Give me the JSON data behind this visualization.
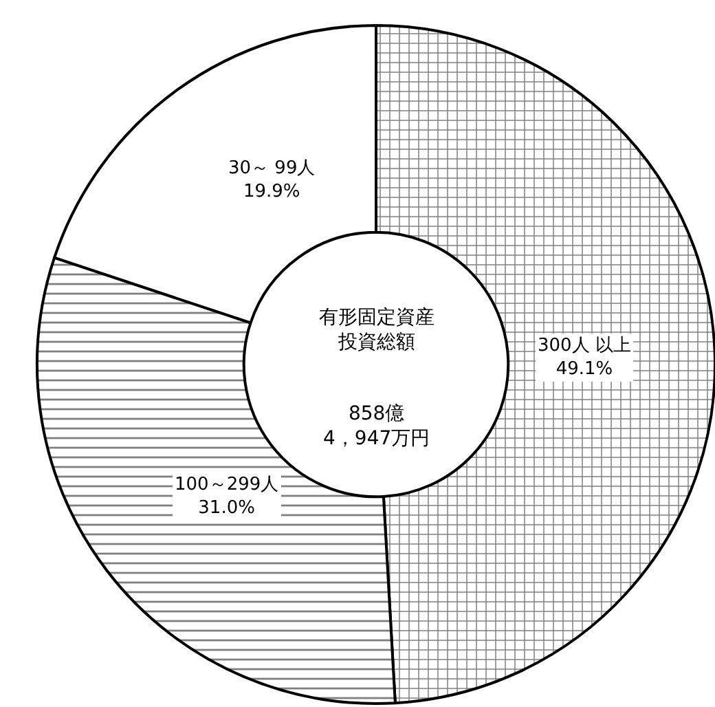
{
  "chart_data": {
    "type": "donut",
    "title": "有形固定資産投資総額",
    "subtitle": "858億\n4，947万円",
    "categories": [
      "300人 以上",
      "100～299人",
      "30～ 99人"
    ],
    "values": [
      49.1,
      31.0,
      19.9
    ],
    "value_labels": [
      "49.1%",
      "31.0%",
      "19.9%"
    ],
    "colors": [
      "#000000",
      "#000000",
      "#ffffff"
    ],
    "legend": false
  }
}
